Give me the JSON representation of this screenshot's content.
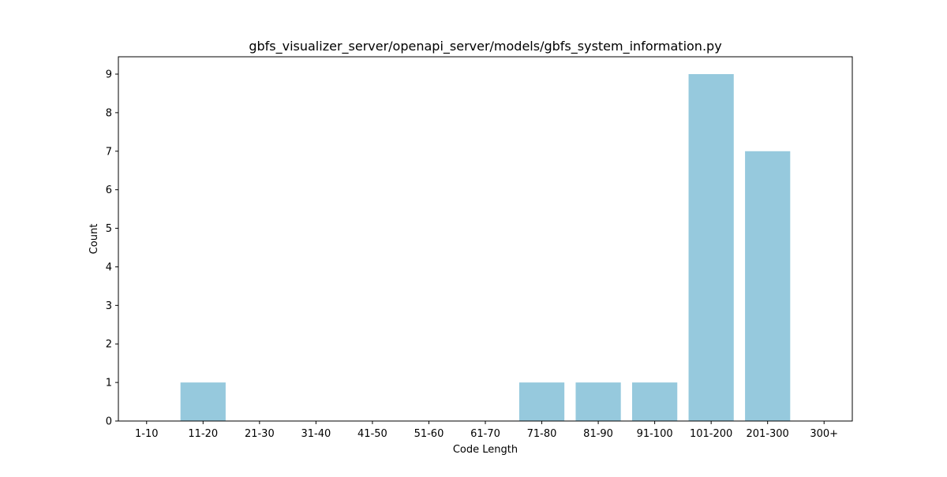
{
  "chart_data": {
    "type": "bar",
    "title": "gbfs_visualizer_server/openapi_server/models/gbfs_system_information.py",
    "xlabel": "Code Length",
    "ylabel": "Count",
    "categories": [
      "1-10",
      "11-20",
      "21-30",
      "31-40",
      "41-50",
      "51-60",
      "61-70",
      "71-80",
      "81-90",
      "91-100",
      "101-200",
      "201-300",
      "300+"
    ],
    "values": [
      0,
      1,
      0,
      0,
      0,
      0,
      0,
      1,
      1,
      1,
      9,
      7,
      0
    ],
    "ylim": [
      0,
      9.45
    ],
    "yticks": [
      0,
      1,
      2,
      3,
      4,
      5,
      6,
      7,
      8,
      9
    ],
    "grid": false,
    "bar_color": "#96c9dd"
  }
}
